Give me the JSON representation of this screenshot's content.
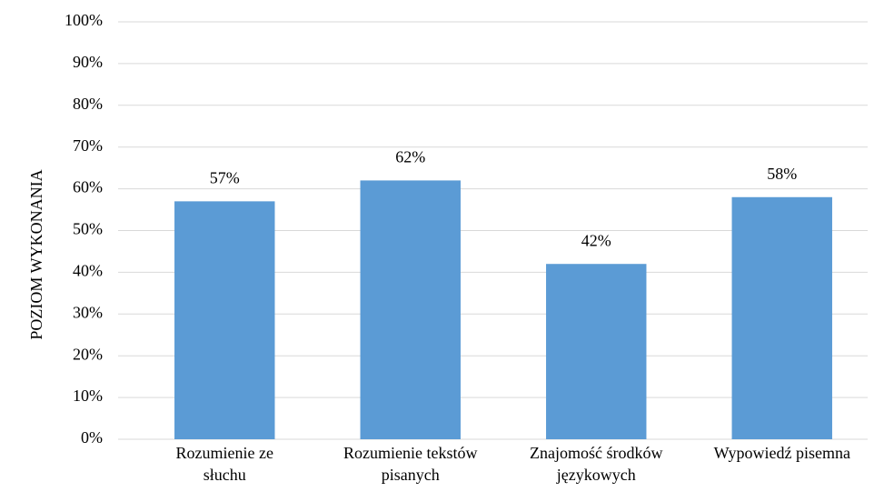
{
  "chart_data": {
    "type": "bar",
    "y_label": "POZIOM WYKONANIA",
    "categories": [
      [
        "Rozumienie ze",
        "słuchu"
      ],
      [
        "Rozumienie tekstów",
        "pisanych"
      ],
      [
        "Znajomość środków",
        "językowych"
      ],
      [
        "Wypowiedź pisemna"
      ]
    ],
    "values": [
      57,
      62,
      42,
      58
    ],
    "value_labels": [
      "57%",
      "62%",
      "42%",
      "58%"
    ],
    "color": "#5b9bd5",
    "ylim": [
      0,
      100
    ],
    "yticks": [
      {
        "value": 0,
        "label": "0%"
      },
      {
        "value": 10,
        "label": "10%"
      },
      {
        "value": 20,
        "label": "20%"
      },
      {
        "value": 30,
        "label": "30%"
      },
      {
        "value": 40,
        "label": "40%"
      },
      {
        "value": 50,
        "label": "50%"
      },
      {
        "value": 60,
        "label": "60%"
      },
      {
        "value": 70,
        "label": "70%"
      },
      {
        "value": 80,
        "label": "80%"
      },
      {
        "value": 90,
        "label": "90%"
      },
      {
        "value": 100,
        "label": "100%"
      }
    ],
    "grid": true
  }
}
